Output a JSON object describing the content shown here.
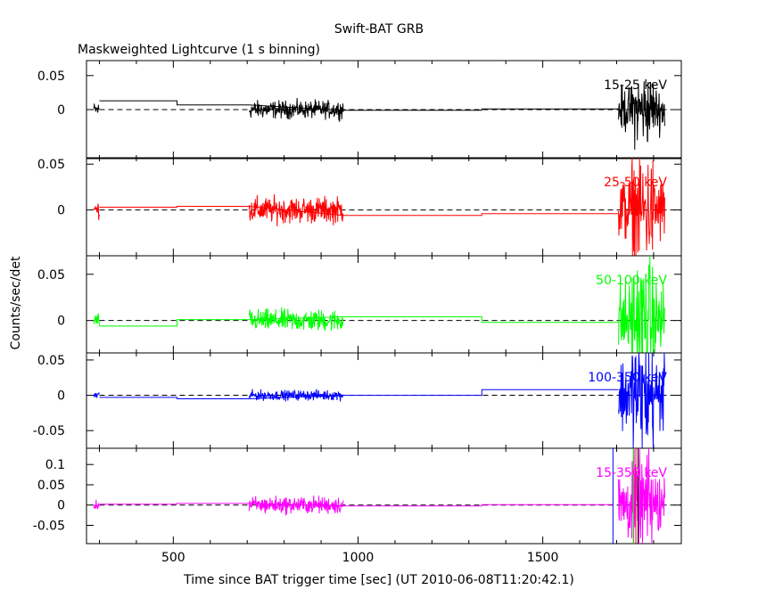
{
  "chart_data": {
    "type": "line",
    "title": "Swift-BAT GRB",
    "subtitle": "Maskweighted Lightcurve (1 s binning)",
    "xlabel": "Time since BAT trigger time [sec] (UT 2010-06-08T11:20:42.1)",
    "ylabel": "Counts/sec/det",
    "xlim": [
      265,
      1875
    ],
    "x_ticks": [
      500,
      1000,
      1500
    ],
    "x_tick_labels": [
      "500",
      "1000",
      "1500"
    ],
    "grid": false,
    "panels": [
      {
        "name": "15-25 keV",
        "color": "#000000",
        "ylim": [
          -0.072,
          0.072
        ],
        "y_ticks": [
          0,
          0.05
        ],
        "y_tick_labels": [
          "0",
          "0.05"
        ],
        "series": {
          "steps": [
            {
              "x0": 300,
              "x1": 510,
              "y": 0.013
            },
            {
              "x0": 510,
              "x1": 705,
              "y": 0.007
            },
            {
              "x0": 960,
              "x1": 1335,
              "y": -0.001
            },
            {
              "x0": 1335,
              "x1": 1705,
              "y": 0.001
            }
          ],
          "bursts": [
            {
              "x0": 285,
              "x1": 300,
              "amp": 0.009
            },
            {
              "x0": 705,
              "x1": 960,
              "amp": 0.011
            },
            {
              "x0": 1705,
              "x1": 1830,
              "amp": 0.028
            }
          ]
        }
      },
      {
        "name": "25-50 keV",
        "color": "#ff0000",
        "ylim": [
          -0.05,
          0.057
        ],
        "y_ticks": [
          0,
          0.05
        ],
        "y_tick_labels": [
          "0",
          "0.05"
        ],
        "series": {
          "steps": [
            {
              "x0": 300,
              "x1": 510,
              "y": 0.003
            },
            {
              "x0": 510,
              "x1": 705,
              "y": 0.004
            },
            {
              "x0": 960,
              "x1": 1335,
              "y": -0.006
            },
            {
              "x0": 1335,
              "x1": 1705,
              "y": -0.004
            }
          ],
          "bursts": [
            {
              "x0": 285,
              "x1": 300,
              "amp": 0.008
            },
            {
              "x0": 705,
              "x1": 960,
              "amp": 0.012
            },
            {
              "x0": 1705,
              "x1": 1830,
              "amp": 0.032
            }
          ]
        }
      },
      {
        "name": "50-100 keV",
        "color": "#00ff00",
        "ylim": [
          -0.035,
          0.07
        ],
        "y_ticks": [
          0,
          0.05
        ],
        "y_tick_labels": [
          "0",
          "0.05"
        ],
        "series": {
          "steps": [
            {
              "x0": 300,
              "x1": 510,
              "y": -0.006
            },
            {
              "x0": 510,
              "x1": 705,
              "y": 0.001
            },
            {
              "x0": 960,
              "x1": 1335,
              "y": 0.004
            },
            {
              "x0": 1335,
              "x1": 1705,
              "y": -0.002
            }
          ],
          "bursts": [
            {
              "x0": 285,
              "x1": 300,
              "amp": 0.007
            },
            {
              "x0": 705,
              "x1": 960,
              "amp": 0.01
            },
            {
              "x0": 1705,
              "x1": 1830,
              "amp": 0.035
            }
          ]
        }
      },
      {
        "name": "100-350 keV",
        "color": "#0000ff",
        "ylim": [
          -0.075,
          0.06
        ],
        "y_ticks": [
          -0.05,
          0,
          0.05
        ],
        "y_tick_labels": [
          "-0.05",
          "0",
          "0.05"
        ],
        "series": {
          "steps": [
            {
              "x0": 300,
              "x1": 510,
              "y": -0.003
            },
            {
              "x0": 510,
              "x1": 705,
              "y": -0.005
            },
            {
              "x0": 960,
              "x1": 1335,
              "y": 0.0
            },
            {
              "x0": 1335,
              "x1": 1705,
              "y": 0.008
            }
          ],
          "bursts": [
            {
              "x0": 285,
              "x1": 300,
              "amp": 0.005
            },
            {
              "x0": 705,
              "x1": 960,
              "amp": 0.006
            },
            {
              "x0": 1705,
              "x1": 1830,
              "amp": 0.045
            }
          ]
        }
      },
      {
        "name": "15-350 keV",
        "color": "#ff00ff",
        "ylim": [
          -0.095,
          0.14
        ],
        "y_ticks": [
          -0.05,
          0,
          0.05,
          0.1
        ],
        "y_tick_labels": [
          "-0.05",
          "0",
          "0.05",
          "0.1"
        ],
        "series": {
          "steps": [
            {
              "x0": 300,
              "x1": 510,
              "y": 0.002
            },
            {
              "x0": 510,
              "x1": 705,
              "y": 0.004
            },
            {
              "x0": 960,
              "x1": 1335,
              "y": -0.002
            },
            {
              "x0": 1335,
              "x1": 1690,
              "y": 0.001
            }
          ],
          "bursts": [
            {
              "x0": 285,
              "x1": 300,
              "amp": 0.01
            },
            {
              "x0": 705,
              "x1": 960,
              "amp": 0.018
            },
            {
              "x0": 1705,
              "x1": 1830,
              "amp": 0.07
            }
          ],
          "vlines": [
            {
              "x": 1690,
              "color": "#0000ff"
            },
            {
              "x": 1745,
              "color": "#00ff00"
            },
            {
              "x": 1752,
              "color": "#ff0000"
            },
            {
              "x": 1758,
              "color": "#000000"
            }
          ]
        }
      }
    ]
  }
}
